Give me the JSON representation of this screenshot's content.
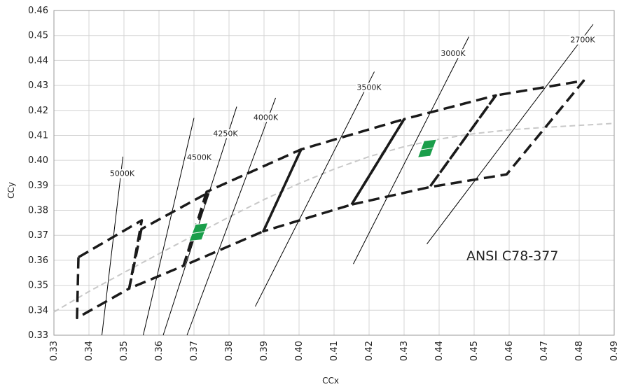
{
  "chart_data": {
    "type": "scatter",
    "title": "",
    "xlabel": "CCx",
    "ylabel": "CCy",
    "xlim": [
      0.33,
      0.49
    ],
    "ylim": [
      0.33,
      0.46
    ],
    "x_ticks": [
      "0.33",
      "0.34",
      "0.35",
      "0.36",
      "0.37",
      "0.38",
      "0.39",
      "0.40",
      "0.41",
      "0.42",
      "0.43",
      "0.44",
      "0.45",
      "0.46",
      "0.47",
      "0.48",
      "0.49"
    ],
    "y_ticks": [
      "0.33",
      "0.34",
      "0.35",
      "0.36",
      "0.37",
      "0.38",
      "0.39",
      "0.40",
      "0.41",
      "0.42",
      "0.43",
      "0.44",
      "0.45",
      "0.46"
    ],
    "grid": true,
    "annotation": "ANSI C78-377",
    "colors": {
      "grid": "#d4d4d4",
      "axis": "#999999",
      "quadrangle": "#1a1a1a",
      "locus": "#c8c8c8",
      "marker": "#1a9e4a",
      "line": "#000000"
    },
    "isotherms": [
      {
        "label": "5000K",
        "points": [
          [
            0.3437,
            0.33
          ],
          [
            0.3497,
            0.4015
          ]
        ],
        "label_at": [
          0.3495,
          0.394
        ]
      },
      {
        "label": "4500K",
        "points": [
          [
            0.3555,
            0.33
          ],
          [
            0.37,
            0.417
          ]
        ],
        "label_at": [
          0.3715,
          0.4005
        ]
      },
      {
        "label": "4250K",
        "points": [
          [
            0.3612,
            0.33
          ],
          [
            0.3822,
            0.4215
          ]
        ],
        "label_at": [
          0.379,
          0.41
        ]
      },
      {
        "label": "4000K",
        "points": [
          [
            0.368,
            0.33
          ],
          [
            0.3933,
            0.425
          ]
        ],
        "label_at": [
          0.3905,
          0.4165
        ]
      },
      {
        "label": "3500K",
        "points": [
          [
            0.3875,
            0.3415
          ],
          [
            0.4215,
            0.4355
          ]
        ],
        "label_at": [
          0.42,
          0.4285
        ]
      },
      {
        "label": "3000K",
        "points": [
          [
            0.4155,
            0.3585
          ],
          [
            0.4485,
            0.4495
          ]
        ],
        "label_at": [
          0.444,
          0.442
        ]
      },
      {
        "label": "2700K",
        "points": [
          [
            0.4365,
            0.3665
          ],
          [
            0.484,
            0.4545
          ]
        ],
        "label_at": [
          0.481,
          0.4475
        ]
      }
    ],
    "quadrangles": [
      {
        "name": "5000K",
        "points": [
          [
            0.337,
            0.3612
          ],
          [
            0.3366,
            0.3369
          ],
          [
            0.3515,
            0.3487
          ],
          [
            0.3551,
            0.376
          ]
        ]
      },
      {
        "name": "4500K",
        "points": [
          [
            0.355,
            0.3725
          ],
          [
            0.3515,
            0.3487
          ],
          [
            0.367,
            0.3578
          ],
          [
            0.3742,
            0.3872
          ]
        ]
      },
      {
        "name": "4000K",
        "points": [
          [
            0.3736,
            0.3874
          ],
          [
            0.367,
            0.3578
          ],
          [
            0.3898,
            0.3716
          ],
          [
            0.4006,
            0.4044
          ]
        ]
      },
      {
        "name": "3500K",
        "points": [
          [
            0.4006,
            0.4044
          ],
          [
            0.3898,
            0.3716
          ],
          [
            0.415,
            0.3823
          ],
          [
            0.43,
            0.4165
          ]
        ]
      },
      {
        "name": "3000K",
        "points": [
          [
            0.43,
            0.4165
          ],
          [
            0.415,
            0.3823
          ],
          [
            0.4373,
            0.3893
          ],
          [
            0.4562,
            0.426
          ]
        ]
      },
      {
        "name": "2700K",
        "points": [
          [
            0.4562,
            0.426
          ],
          [
            0.4373,
            0.3893
          ],
          [
            0.4593,
            0.3944
          ],
          [
            0.4813,
            0.4319
          ]
        ]
      }
    ],
    "solid_edge": [
      [
        0.415,
        0.3823
      ],
      [
        0.43,
        0.4165
      ]
    ],
    "planckian_locus": [
      [
        0.33,
        0.3393
      ],
      [
        0.34,
        0.3475
      ],
      [
        0.35,
        0.3551
      ],
      [
        0.36,
        0.3626
      ],
      [
        0.37,
        0.37
      ],
      [
        0.38,
        0.3773
      ],
      [
        0.39,
        0.3843
      ],
      [
        0.4,
        0.3907
      ],
      [
        0.41,
        0.3965
      ],
      [
        0.42,
        0.4015
      ],
      [
        0.43,
        0.4055
      ],
      [
        0.44,
        0.4085
      ],
      [
        0.45,
        0.4107
      ],
      [
        0.46,
        0.4122
      ],
      [
        0.47,
        0.4132
      ],
      [
        0.48,
        0.414
      ],
      [
        0.49,
        0.4148
      ]
    ],
    "markers": [
      {
        "name": "marker-4500K",
        "center": [
          0.3712,
          0.371
        ]
      },
      {
        "name": "marker-3000K",
        "center": [
          0.4365,
          0.4045
        ]
      }
    ]
  }
}
